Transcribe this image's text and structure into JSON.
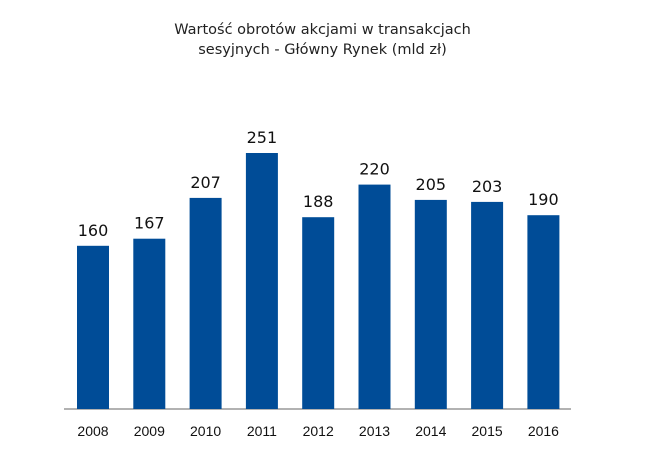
{
  "chart_data": {
    "type": "bar",
    "title": "Wartość obrotów akcjami w transakcjach",
    "subtitle": "sesyjnych - Główny Rynek (mld zł)",
    "xlabel": "",
    "ylabel": "",
    "categories": [
      "2008",
      "2009",
      "2010",
      "2011",
      "2012",
      "2013",
      "2014",
      "2015",
      "2016"
    ],
    "values": [
      160,
      167,
      207,
      251,
      188,
      220,
      205,
      203,
      190
    ],
    "data_labels": [
      "160",
      "167",
      "207",
      "251",
      "188",
      "220",
      "205",
      "203",
      "190"
    ],
    "ylim": [
      0,
      260
    ],
    "grid": false,
    "legend": "none",
    "bar_color": "#004C97",
    "axis_color": "#999999"
  }
}
